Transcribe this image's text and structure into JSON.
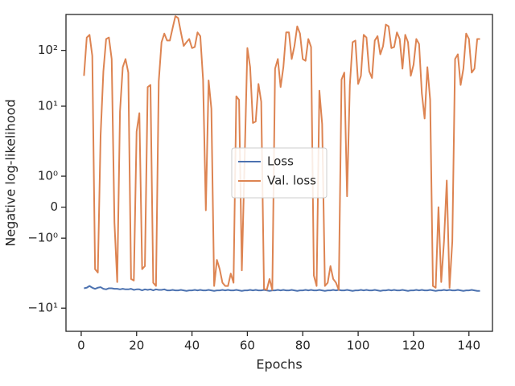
{
  "chart_data": {
    "type": "line",
    "xlabel": "Epochs",
    "ylabel": "Negative log-likelihood",
    "x": [
      1,
      2,
      3,
      4,
      5,
      6,
      7,
      8,
      9,
      10,
      11,
      12,
      13,
      14,
      15,
      16,
      17,
      18,
      19,
      20,
      21,
      22,
      23,
      24,
      25,
      26,
      27,
      28,
      29,
      30,
      31,
      32,
      33,
      34,
      35,
      36,
      37,
      38,
      39,
      40,
      41,
      42,
      43,
      44,
      45,
      46,
      47,
      48,
      49,
      50,
      51,
      52,
      53,
      54,
      55,
      56,
      57,
      58,
      59,
      60,
      61,
      62,
      63,
      64,
      65,
      66,
      67,
      68,
      69,
      70,
      71,
      72,
      73,
      74,
      75,
      76,
      77,
      78,
      79,
      80,
      81,
      82,
      83,
      84,
      85,
      86,
      87,
      88,
      89,
      90,
      91,
      92,
      93,
      94,
      95,
      96,
      97,
      98,
      99,
      100,
      101,
      102,
      103,
      104,
      105,
      106,
      107,
      108,
      109,
      110,
      111,
      112,
      113,
      114,
      115,
      116,
      117,
      118,
      119,
      120,
      121,
      122,
      123,
      124,
      125,
      126,
      127,
      128,
      129,
      130,
      131,
      132,
      133,
      134,
      135,
      136,
      137,
      138,
      139,
      140,
      141,
      142,
      143,
      144
    ],
    "series": [
      {
        "name": "Loss",
        "color": "#4c72b0",
        "values": [
          -4.4,
          -4.3,
          -4.0,
          -4.3,
          -4.5,
          -4.3,
          -4.2,
          -4.5,
          -4.6,
          -4.4,
          -4.4,
          -4.5,
          -4.5,
          -4.6,
          -4.5,
          -4.6,
          -4.6,
          -4.5,
          -4.7,
          -4.6,
          -4.6,
          -4.8,
          -4.6,
          -4.7,
          -4.6,
          -4.8,
          -4.6,
          -4.7,
          -4.7,
          -4.6,
          -4.8,
          -4.8,
          -4.7,
          -4.8,
          -4.8,
          -4.7,
          -4.8,
          -4.9,
          -4.8,
          -4.8,
          -4.7,
          -4.8,
          -4.7,
          -4.8,
          -4.8,
          -4.7,
          -4.8,
          -4.9,
          -4.8,
          -4.8,
          -4.7,
          -4.8,
          -4.7,
          -4.8,
          -4.8,
          -4.7,
          -4.8,
          -4.9,
          -4.8,
          -4.8,
          -4.7,
          -4.8,
          -4.7,
          -4.8,
          -4.8,
          -4.7,
          -4.8,
          -4.9,
          -4.8,
          -4.8,
          -4.7,
          -4.8,
          -4.7,
          -4.8,
          -4.8,
          -4.7,
          -4.8,
          -4.9,
          -4.8,
          -4.8,
          -4.7,
          -4.8,
          -4.7,
          -4.8,
          -4.8,
          -4.7,
          -4.8,
          -4.9,
          -4.8,
          -4.8,
          -4.7,
          -4.8,
          -4.7,
          -4.8,
          -4.8,
          -4.7,
          -4.8,
          -4.9,
          -4.8,
          -4.8,
          -4.7,
          -4.8,
          -4.7,
          -4.8,
          -4.8,
          -4.7,
          -4.8,
          -4.9,
          -4.8,
          -4.8,
          -4.7,
          -4.8,
          -4.7,
          -4.8,
          -4.8,
          -4.7,
          -4.8,
          -4.9,
          -4.8,
          -4.8,
          -4.7,
          -4.8,
          -4.7,
          -4.8,
          -4.8,
          -4.7,
          -4.8,
          -4.9,
          -4.8,
          -4.8,
          -4.7,
          -4.8,
          -4.7,
          -4.8,
          -4.8,
          -4.7,
          -4.8,
          -4.9,
          -4.8,
          -4.8,
          -4.7,
          -4.8,
          -4.9,
          -4.9
        ]
      },
      {
        "name": "Val. loss",
        "color": "#dd8452",
        "values": [
          35,
          170,
          190,
          80,
          -2,
          -2.3,
          3,
          42,
          160,
          170,
          70,
          -0.5,
          -3.4,
          8,
          50,
          70,
          40,
          -3,
          -3.2,
          3.5,
          7.5,
          -2,
          -1.9,
          22,
          24,
          -3.5,
          -4,
          28,
          140,
          200,
          150,
          150,
          250,
          410,
          380,
          210,
          120,
          140,
          160,
          110,
          115,
          210,
          180,
          30,
          -0.1,
          29,
          9,
          -4,
          -1.7,
          -2,
          -3.5,
          -4,
          -4,
          -2.4,
          -3.5,
          15,
          13,
          -2.1,
          1.5,
          110,
          50,
          5,
          5.3,
          25,
          12,
          -4.5,
          -4.7,
          -3,
          -4.7,
          47,
          70,
          22,
          50,
          210,
          210,
          70,
          120,
          270,
          200,
          70,
          65,
          160,
          115,
          -2.6,
          -4,
          19,
          4.8,
          -4,
          -3.5,
          -1.9,
          -3,
          -3.5,
          -4.7,
          30,
          40,
          0.35,
          24,
          140,
          150,
          25,
          35,
          190,
          170,
          42,
          32,
          150,
          180,
          85,
          120,
          290,
          270,
          110,
          115,
          210,
          160,
          47,
          190,
          140,
          35,
          55,
          160,
          130,
          17,
          6,
          50,
          13,
          -4,
          -4.3,
          0,
          -3.4,
          -1.1,
          0.86,
          -4.3,
          -1.1,
          70,
          85,
          24,
          47,
          200,
          160,
          40,
          47,
          160,
          160
        ]
      }
    ],
    "xlim": [
      -5.5,
      148.5
    ],
    "xticks": [
      0,
      20,
      40,
      60,
      80,
      100,
      120,
      140
    ],
    "yscale": "symlog",
    "linthresh": 2,
    "linscale": 1,
    "ylim": [
      -26,
      440
    ],
    "yticks": [
      {
        "value": -10,
        "label": "−10¹"
      },
      {
        "value": -1,
        "label": "−10⁰"
      },
      0,
      {
        "value": 1,
        "label": "10⁰"
      },
      {
        "value": 10,
        "label": "10¹"
      },
      {
        "value": 100,
        "label": "10²"
      }
    ],
    "grid": false,
    "legend": "center"
  }
}
